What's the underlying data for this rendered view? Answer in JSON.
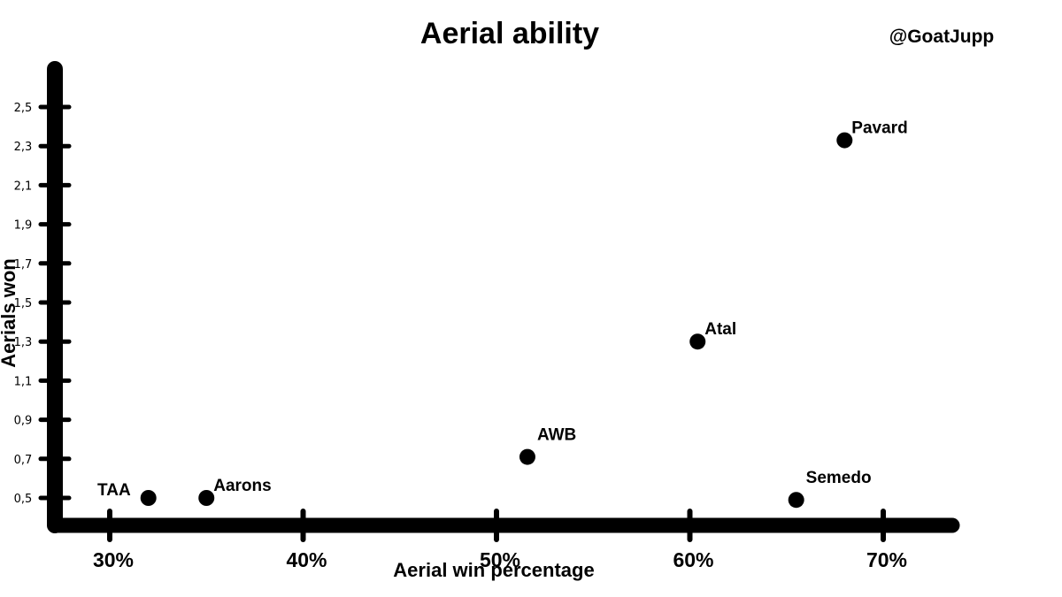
{
  "chart_data": {
    "type": "scatter",
    "title": "Aerial ability",
    "credit": "@GoatJupp",
    "xlabel": "Aerial win percentage",
    "ylabel": "Aerials won",
    "xlim": [
      27,
      74
    ],
    "ylim": [
      0.37,
      2.65
    ],
    "x_ticks": [
      {
        "value": 30,
        "label": "30%"
      },
      {
        "value": 40,
        "label": "40%"
      },
      {
        "value": 50,
        "label": "50%"
      },
      {
        "value": 60,
        "label": "60%"
      },
      {
        "value": 70,
        "label": "70%"
      }
    ],
    "y_ticks": [
      {
        "value": 0.5,
        "label": "0,5"
      },
      {
        "value": 0.7,
        "label": "0,7"
      },
      {
        "value": 0.9,
        "label": "0,9"
      },
      {
        "value": 1.1,
        "label": "1,1"
      },
      {
        "value": 1.3,
        "label": "1,3"
      },
      {
        "value": 1.5,
        "label": "1,5"
      },
      {
        "value": 1.7,
        "label": "1,7"
      },
      {
        "value": 1.9,
        "label": "1,9"
      },
      {
        "value": 2.1,
        "label": "2,1"
      },
      {
        "value": 2.3,
        "label": "2,3"
      },
      {
        "value": 2.5,
        "label": "2,5"
      }
    ],
    "points": [
      {
        "label": "TAA",
        "x": 32,
        "y": 0.5,
        "label_pos": "left"
      },
      {
        "label": "Aarons",
        "x": 35,
        "y": 0.5,
        "label_pos": "right"
      },
      {
        "label": "AWB",
        "x": 51.6,
        "y": 0.71,
        "label_pos": "above-right"
      },
      {
        "label": "Atal",
        "x": 60.4,
        "y": 1.3,
        "label_pos": "right"
      },
      {
        "label": "Semedo",
        "x": 65.5,
        "y": 0.49,
        "label_pos": "above-right"
      },
      {
        "label": "Pavard",
        "x": 68,
        "y": 2.33,
        "label_pos": "right"
      }
    ],
    "grid": false,
    "colors": {
      "axis": "#000000",
      "point": "#000000",
      "background": "#ffffff"
    }
  }
}
